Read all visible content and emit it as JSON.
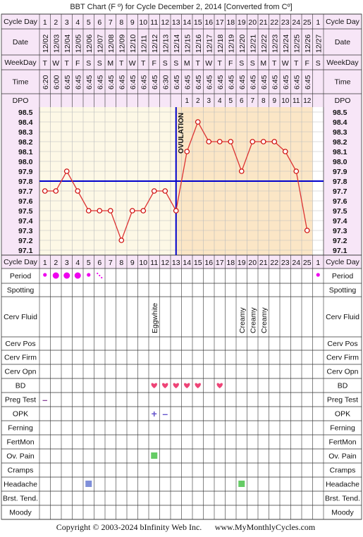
{
  "title": "BBT Chart (F º) for Cycle December 2, 2014  [Converted from Cº]",
  "copyright": "Copyright © 2003-2024 bInfinity Web Inc.",
  "website": "www.MyMonthlyCycles.com",
  "row_labels": {
    "cycle_day": "Cycle Day",
    "date": "Date",
    "weekday": "WeekDay",
    "time": "Time",
    "dpo": "DPO",
    "period": "Period",
    "spotting": "Spotting",
    "cerv_fluid": "Cerv Fluid",
    "cerv_pos": "Cerv Pos",
    "cerv_firm": "Cerv Firm",
    "cerv_opn": "Cerv Opn",
    "bd": "BD",
    "preg_test": "Preg Test",
    "opk": "OPK",
    "ferning": "Ferning",
    "fertmon": "FertMon",
    "ov_pain": "Ov. Pain",
    "cramps": "Cramps",
    "headache": "Headache",
    "brst_tend": "Brst. Tend.",
    "moody": "Moody"
  },
  "cycle_days": [
    "1",
    "2",
    "3",
    "4",
    "5",
    "6",
    "7",
    "8",
    "9",
    "10",
    "11",
    "12",
    "13",
    "14",
    "15",
    "16",
    "17",
    "18",
    "19",
    "20",
    "21",
    "22",
    "23",
    "24",
    "25",
    "1"
  ],
  "dates": [
    "12/02",
    "12/03",
    "12/04",
    "12/05",
    "12/06",
    "12/07",
    "12/08",
    "12/09",
    "12/10",
    "12/11",
    "12/12",
    "12/13",
    "12/14",
    "12/15",
    "12/16",
    "12/17",
    "12/18",
    "12/19",
    "12/20",
    "12/21",
    "12/22",
    "12/23",
    "12/24",
    "12/25",
    "12/26",
    "12/27"
  ],
  "weekdays": [
    "T",
    "W",
    "T",
    "F",
    "S",
    "S",
    "M",
    "T",
    "W",
    "T",
    "F",
    "S",
    "S",
    "M",
    "T",
    "W",
    "T",
    "F",
    "S",
    "S",
    "M",
    "T",
    "W",
    "T",
    "F",
    "S"
  ],
  "times": [
    "6:20",
    "6:00",
    "6:45",
    "6:45",
    "6:45",
    "6:45",
    "6:45",
    "6:45",
    "6:45",
    "6:45",
    "6:45",
    "6:30",
    "6:45",
    "6:45",
    "6:45",
    "6:45",
    "6:45",
    "6:45",
    "6:45",
    "6:45",
    "6:45",
    "6:45",
    "6:45",
    "6:45",
    "6:45",
    ""
  ],
  "dpo": [
    "",
    "",
    "",
    "",
    "",
    "",
    "",
    "",
    "",
    "",
    "",
    "",
    "",
    "1",
    "2",
    "3",
    "4",
    "5",
    "6",
    "7",
    "8",
    "9",
    "10",
    "11",
    "12",
    ""
  ],
  "ovulation_label": "OVULATION",
  "chart_data": {
    "type": "line",
    "x": [
      1,
      2,
      3,
      4,
      5,
      6,
      7,
      8,
      9,
      10,
      11,
      12,
      13,
      14,
      15,
      16,
      17,
      18,
      19,
      20,
      21,
      22,
      23,
      24,
      25
    ],
    "values": [
      97.7,
      97.7,
      97.9,
      97.7,
      97.5,
      97.5,
      97.5,
      97.2,
      97.5,
      97.5,
      97.7,
      97.7,
      97.5,
      98.1,
      98.4,
      98.2,
      98.2,
      98.2,
      97.9,
      98.2,
      98.2,
      98.2,
      98.1,
      97.9,
      97.3
    ],
    "y_ticks": [
      "98.5",
      "98.4",
      "98.3",
      "98.2",
      "98.1",
      "98.0",
      "97.9",
      "97.8",
      "97.7",
      "97.6",
      "97.5",
      "97.4",
      "97.3",
      "97.2",
      "97.1"
    ],
    "ylim": [
      97.1,
      98.5
    ],
    "coverline": 97.8,
    "ovulation_day": 13,
    "grid": true,
    "colors": {
      "line": "#dd3333",
      "point_fill": "#ffffff",
      "point_stroke": "#cc0000",
      "coverline": "#0000cc",
      "pre_ov_bg": "#fdf8e6",
      "post_ov_bg": "#fbe6c6",
      "header_bg": "#f7e6f7",
      "grid": "#bbbbbb"
    }
  },
  "period_marks": {
    "1": "dot-small",
    "2": "dot",
    "3": "dot",
    "4": "dot",
    "5": "dot-small",
    "6": "dot-tiny",
    "26": "dot-small"
  },
  "cerv_fluid_marks": {
    "11": "Eggwhite",
    "19": "Creamy",
    "20": "Creamy",
    "21": "Creamy"
  },
  "bd_days": [
    11,
    12,
    13,
    14,
    15,
    17
  ],
  "preg_test": {
    "1": "–"
  },
  "opk": {
    "11": "+",
    "12": "–"
  },
  "ov_pain_days": [
    11
  ],
  "headache_marks": {
    "5": "#7f8fd9",
    "19": "#66cc66"
  },
  "colors": {
    "period": "#ee00ee",
    "heart": "#ee4477",
    "preg": "#884499",
    "opk": "#6655cc",
    "ov_pain": "#66cc66",
    "grid_line": "#333333"
  }
}
